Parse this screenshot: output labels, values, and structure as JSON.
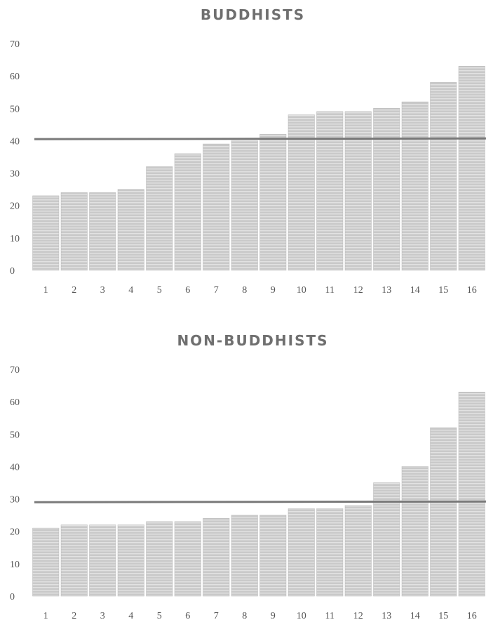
{
  "chart_data": [
    {
      "type": "bar",
      "title": "BUDDHISTS",
      "categories": [
        "1",
        "2",
        "3",
        "4",
        "5",
        "6",
        "7",
        "8",
        "9",
        "10",
        "11",
        "12",
        "13",
        "14",
        "15",
        "16"
      ],
      "values": [
        23,
        24,
        24,
        25,
        32,
        36,
        39,
        40,
        42,
        48,
        49,
        49,
        50,
        52,
        58,
        63
      ],
      "reference_line": 40.6,
      "ylim": [
        0,
        70
      ],
      "yticks": [
        "0",
        "10",
        "20",
        "30",
        "40",
        "50",
        "60",
        "70"
      ],
      "grid": false,
      "legend": "none",
      "bar_color": "#c9c9c9",
      "line_color": "#7a7a7a"
    },
    {
      "type": "bar",
      "title": "NON-BUDDHISTS",
      "categories": [
        "1",
        "2",
        "3",
        "4",
        "5",
        "6",
        "7",
        "8",
        "9",
        "10",
        "11",
        "12",
        "13",
        "14",
        "15",
        "16"
      ],
      "values": [
        21,
        22,
        22,
        22,
        23,
        23,
        24,
        25,
        25,
        27,
        27,
        28,
        35,
        40,
        52,
        63
      ],
      "reference_line": 29.1,
      "ylim": [
        0,
        70
      ],
      "yticks": [
        "0",
        "10",
        "20",
        "30",
        "40",
        "50",
        "60",
        "70"
      ],
      "grid": false,
      "legend": "none",
      "bar_color": "#c9c9c9",
      "line_color": "#7a7a7a"
    }
  ]
}
